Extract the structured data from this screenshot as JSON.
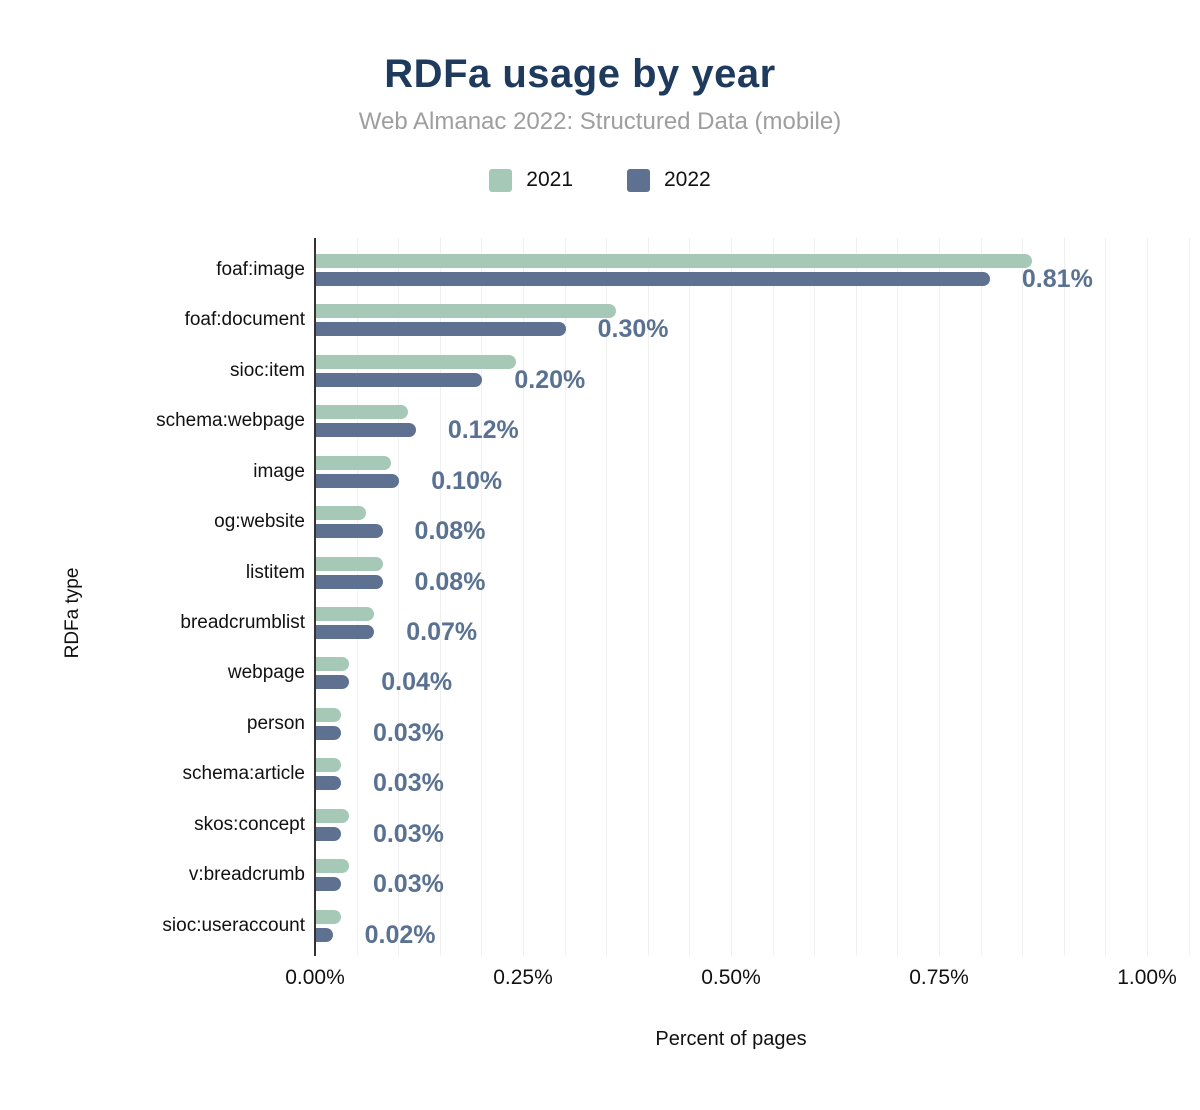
{
  "chart_data": {
    "type": "bar",
    "orientation": "horizontal",
    "title": "RDFa usage by year",
    "subtitle": "Web Almanac 2022: Structured Data (mobile)",
    "xlabel": "Percent of pages",
    "ylabel": "RDFa type",
    "x_ticks": [
      "0.00%",
      "0.25%",
      "0.50%",
      "0.75%",
      "1.00%"
    ],
    "xlim": [
      0,
      1.0
    ],
    "grid": "vertical, minor every 0.05%",
    "legend_position": "top-center",
    "categories": [
      "foaf:image",
      "foaf:document",
      "sioc:item",
      "schema:webpage",
      "image",
      "og:website",
      "listitem",
      "breadcrumblist",
      "webpage",
      "person",
      "schema:article",
      "skos:concept",
      "v:breadcrumb",
      "sioc:useraccount"
    ],
    "series": [
      {
        "name": "2021",
        "color": "#a6c9b7",
        "values": [
          0.86,
          0.36,
          0.24,
          0.11,
          0.09,
          0.06,
          0.08,
          0.07,
          0.04,
          0.03,
          0.03,
          0.04,
          0.04,
          0.03
        ]
      },
      {
        "name": "2022",
        "color": "#5f7190",
        "values": [
          0.81,
          0.3,
          0.2,
          0.12,
          0.1,
          0.08,
          0.08,
          0.07,
          0.04,
          0.03,
          0.03,
          0.03,
          0.03,
          0.02
        ]
      }
    ],
    "value_labels": [
      "0.81%",
      "0.30%",
      "0.20%",
      "0.12%",
      "0.10%",
      "0.08%",
      "0.08%",
      "0.07%",
      "0.04%",
      "0.03%",
      "0.03%",
      "0.03%",
      "0.03%",
      "0.02%"
    ],
    "value_label_color": "#5a7291",
    "title_color": "#1e3a5c",
    "subtitle_color": "#9e9e9e"
  }
}
